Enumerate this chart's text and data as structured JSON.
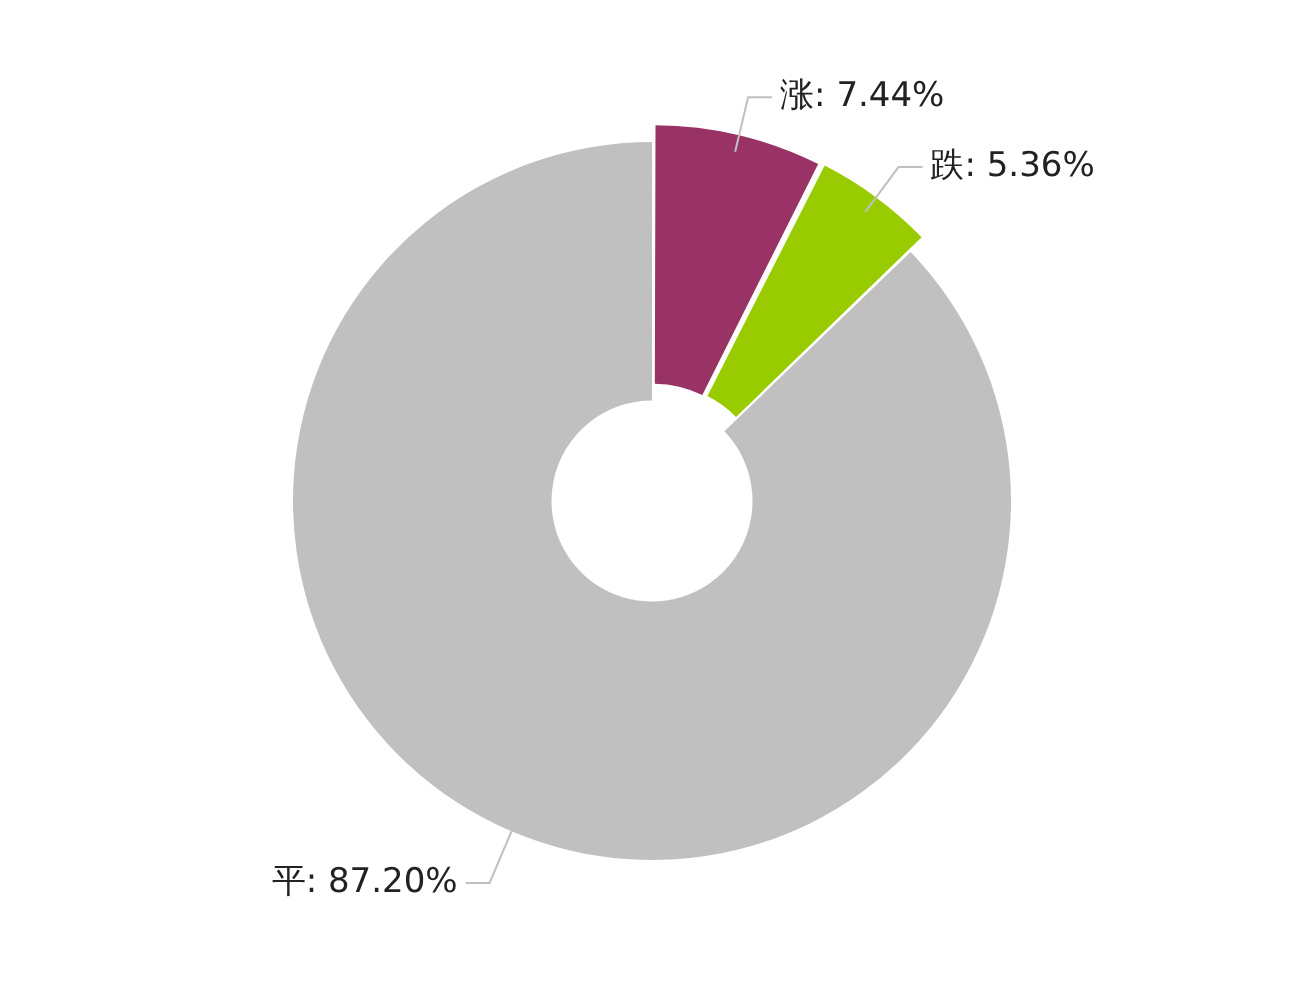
{
  "chart_data": {
    "type": "donut",
    "categories": [
      "涨",
      "跌",
      "平"
    ],
    "values": [
      7.44,
      5.36,
      87.2
    ],
    "colors": [
      "#993366",
      "#99cc00",
      "#c0c0c0"
    ],
    "value_labels": [
      "7.44%",
      "5.36%",
      "87.20%"
    ],
    "legend": false
  }
}
